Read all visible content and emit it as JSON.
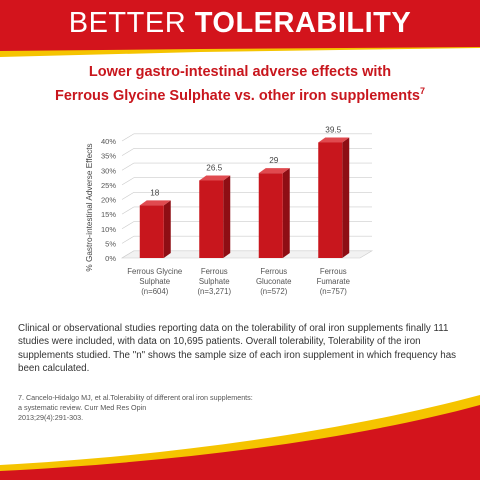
{
  "header": {
    "title_regular": "BETTER",
    "title_bold": "TOLERABILITY"
  },
  "subtitle": {
    "line1": "Lower gastro-intestinal adverse effects with",
    "line2": "Ferrous Glycine Sulphate vs. other iron supplements",
    "superscript": "7"
  },
  "chart_data": {
    "type": "bar",
    "categories": [
      [
        "Ferrous Glycine",
        "Sulphate",
        "(n=604)"
      ],
      [
        "Ferrous",
        "Sulphate",
        "(n=3,271)"
      ],
      [
        "Ferrous",
        "Gluconate",
        "(n=572)"
      ],
      [
        "Ferrous",
        "Fumarate",
        "(n=757)"
      ]
    ],
    "values": [
      18,
      26.5,
      29,
      39.5
    ],
    "data_labels": [
      "18",
      "26.5",
      "29",
      "39.5"
    ],
    "ylabel": "% Gastro-intestinal Adverse Effects",
    "ylim": [
      0,
      40
    ],
    "yticks": [
      0,
      5,
      10,
      15,
      20,
      25,
      30,
      35,
      40
    ],
    "ytick_labels": [
      "0%",
      "5%",
      "10%",
      "15%",
      "20%",
      "25%",
      "30%",
      "35%",
      "40%"
    ],
    "grid": true,
    "legend": "none",
    "bar_color": "#c8161d"
  },
  "body": {
    "text": "Clinical or observational studies reporting data on the tolerability of oral iron supplements finally 111 studies were included, with data on 10,695 patients. Overall tolerability, Tolerability of the iron supplements studied. The \"n\" shows the sample size of each iron supplement in which frequency has been calculated."
  },
  "reference": {
    "line1": "7. Cancelo-Hidalgo MJ, et al.Tolerability of different oral iron supplements:",
    "line2": "a systematic review. Curr Med Res Opin",
    "line3": "2013;29(4):291-303."
  },
  "colors": {
    "brand_red": "#d3141c",
    "accent_yellow": "#f5c400"
  }
}
